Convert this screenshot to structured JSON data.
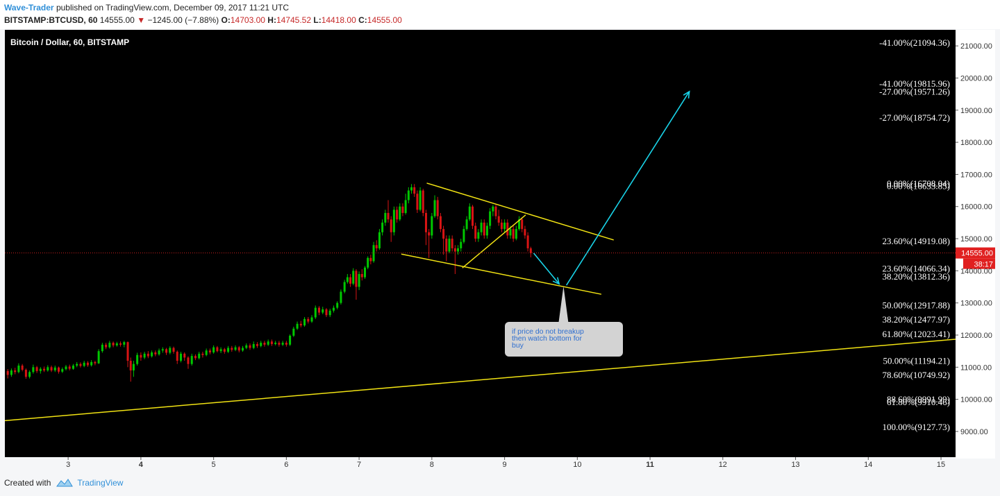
{
  "header": {
    "author": "Wave-Trader",
    "published_text": "published on TradingView.com, December 09, 2017 11:21 UTC",
    "symbol": "BITSTAMP:BTCUSD, 60",
    "last": "14555.00",
    "change_arrow": "▼",
    "change": "−1245.00 (−7.88%)",
    "o_label": "O:",
    "o_value": "14703.00",
    "h_label": "H:",
    "h_value": "14745.52",
    "l_label": "L:",
    "l_value": "14418.00",
    "c_label": "C:",
    "c_value": "14555.00"
  },
  "footer": {
    "created_with": "Created with",
    "brand": "TradingView"
  },
  "colors": {
    "background": "#000000",
    "up": "#00c800",
    "down": "#d81414",
    "trend": "#f2e313",
    "arrow": "#19d3e8",
    "axis_bg": "#ffffff",
    "price_line": "#cc2020",
    "price_tag": "#e02020"
  },
  "chart_data": {
    "type": "candlestick",
    "title": "Bitcoin / Dollar, 60, BITSTAMP",
    "ylim": [
      8200,
      21500
    ],
    "xlim": [
      2.13,
      15.2
    ],
    "x_ticks": [
      "3",
      "4",
      "5",
      "6",
      "7",
      "8",
      "9",
      "10",
      "11",
      "12",
      "13",
      "14",
      "15"
    ],
    "y_ticks": [
      "9000.00",
      "10000.00",
      "11000.00",
      "12000.00",
      "13000.00",
      "14000.00",
      "15000.00",
      "16000.00",
      "17000.00",
      "18000.00",
      "19000.00",
      "20000.00",
      "21000.00"
    ],
    "current_price": "14555.00",
    "countdown": "38:17",
    "candles": [
      [
        2.17,
        10880,
        10760,
        10940,
        10650
      ],
      [
        2.22,
        10760,
        10900,
        10960,
        10700
      ],
      [
        2.27,
        10900,
        10850,
        10980,
        10780
      ],
      [
        2.32,
        10850,
        11050,
        11120,
        10810
      ],
      [
        2.37,
        11050,
        10920,
        11100,
        10870
      ],
      [
        2.42,
        10920,
        10700,
        10960,
        10640
      ],
      [
        2.47,
        10700,
        10850,
        10900,
        10650
      ],
      [
        2.52,
        10850,
        11000,
        11080,
        10800
      ],
      [
        2.57,
        11000,
        10880,
        11040,
        10820
      ],
      [
        2.62,
        10880,
        10950,
        11000,
        10800
      ],
      [
        2.67,
        10950,
        10900,
        11020,
        10850
      ],
      [
        2.72,
        10900,
        11000,
        11060,
        10860
      ],
      [
        2.77,
        11000,
        10900,
        11050,
        10850
      ],
      [
        2.82,
        10900,
        10990,
        11050,
        10850
      ],
      [
        2.87,
        10990,
        10860,
        11020,
        10800
      ],
      [
        2.92,
        10860,
        10940,
        10990,
        10820
      ],
      [
        2.97,
        10940,
        11020,
        11070,
        10900
      ],
      [
        3.02,
        11020,
        10950,
        11080,
        10900
      ],
      [
        3.07,
        10950,
        11050,
        11100,
        10920
      ],
      [
        3.12,
        11050,
        11100,
        11160,
        11000
      ],
      [
        3.17,
        11100,
        11040,
        11150,
        10990
      ],
      [
        3.22,
        11040,
        11140,
        11200,
        11000
      ],
      [
        3.27,
        11140,
        11060,
        11190,
        11010
      ],
      [
        3.32,
        11060,
        11160,
        11220,
        11020
      ],
      [
        3.37,
        11160,
        11120,
        11200,
        11060
      ],
      [
        3.42,
        11120,
        11500,
        11560,
        11100
      ],
      [
        3.47,
        11500,
        11700,
        11760,
        11450
      ],
      [
        3.52,
        11700,
        11620,
        11760,
        11560
      ],
      [
        3.57,
        11620,
        11760,
        11820,
        11580
      ],
      [
        3.62,
        11760,
        11680,
        11800,
        11620
      ],
      [
        3.67,
        11680,
        11740,
        11790,
        11640
      ],
      [
        3.72,
        11740,
        11700,
        11800,
        11640
      ],
      [
        3.77,
        11700,
        11780,
        11820,
        11620
      ],
      [
        3.82,
        11780,
        11200,
        11800,
        11000
      ],
      [
        3.86,
        11200,
        10900,
        11300,
        10550
      ],
      [
        3.9,
        10900,
        11100,
        11200,
        10700
      ],
      [
        3.95,
        11100,
        11380,
        11450,
        11050
      ],
      [
        4.0,
        11380,
        11300,
        11460,
        11200
      ],
      [
        4.05,
        11300,
        11420,
        11480,
        11250
      ],
      [
        4.1,
        11420,
        11340,
        11500,
        11280
      ],
      [
        4.15,
        11340,
        11460,
        11520,
        11300
      ],
      [
        4.2,
        11460,
        11400,
        11520,
        11340
      ],
      [
        4.25,
        11400,
        11520,
        11580,
        11360
      ],
      [
        4.3,
        11520,
        11560,
        11620,
        11450
      ],
      [
        4.35,
        11560,
        11450,
        11600,
        11380
      ],
      [
        4.4,
        11450,
        11600,
        11650,
        11400
      ],
      [
        4.45,
        11600,
        11480,
        11640,
        11420
      ],
      [
        4.5,
        11480,
        11200,
        11520,
        11100
      ],
      [
        4.55,
        11200,
        11420,
        11480,
        11150
      ],
      [
        4.6,
        11420,
        11300,
        11460,
        11200
      ],
      [
        4.65,
        11300,
        11100,
        11340,
        10950
      ],
      [
        4.7,
        11100,
        11350,
        11420,
        11050
      ],
      [
        4.75,
        11350,
        11280,
        11400,
        11220
      ],
      [
        4.8,
        11280,
        11420,
        11480,
        11240
      ],
      [
        4.85,
        11420,
        11380,
        11480,
        11300
      ],
      [
        4.9,
        11380,
        11520,
        11580,
        11340
      ],
      [
        4.95,
        11520,
        11460,
        11580,
        11400
      ],
      [
        5.0,
        11460,
        11620,
        11680,
        11420
      ],
      [
        5.05,
        11620,
        11500,
        11660,
        11460
      ],
      [
        5.1,
        11500,
        11560,
        11620,
        11440
      ],
      [
        5.15,
        11560,
        11480,
        11600,
        11420
      ],
      [
        5.2,
        11480,
        11600,
        11660,
        11440
      ],
      [
        5.25,
        11600,
        11540,
        11660,
        11480
      ],
      [
        5.3,
        11540,
        11620,
        11680,
        11500
      ],
      [
        5.35,
        11620,
        11520,
        11660,
        11460
      ],
      [
        5.4,
        11520,
        11600,
        11660,
        11480
      ],
      [
        5.45,
        11600,
        11680,
        11740,
        11560
      ],
      [
        5.5,
        11680,
        11600,
        11740,
        11540
      ],
      [
        5.55,
        11600,
        11720,
        11800,
        11560
      ],
      [
        5.6,
        11720,
        11660,
        11780,
        11600
      ],
      [
        5.65,
        11660,
        11760,
        11820,
        11620
      ],
      [
        5.7,
        11760,
        11700,
        11820,
        11640
      ],
      [
        5.75,
        11700,
        11800,
        11860,
        11660
      ],
      [
        5.8,
        11800,
        11720,
        11860,
        11660
      ],
      [
        5.85,
        11720,
        11760,
        11820,
        11680
      ],
      [
        5.9,
        11760,
        11700,
        11820,
        11640
      ],
      [
        5.95,
        11700,
        11760,
        11820,
        11660
      ],
      [
        6.0,
        11760,
        11700,
        11820,
        11640
      ],
      [
        6.05,
        11700,
        11980,
        12020,
        11660
      ],
      [
        6.1,
        11980,
        12200,
        12260,
        11940
      ],
      [
        6.15,
        12200,
        12350,
        12420,
        12160
      ],
      [
        6.2,
        12350,
        12300,
        12440,
        12240
      ],
      [
        6.25,
        12300,
        12500,
        12560,
        12260
      ],
      [
        6.3,
        12500,
        12420,
        12560,
        12360
      ],
      [
        6.35,
        12420,
        12550,
        12620,
        12380
      ],
      [
        6.4,
        12550,
        12850,
        12920,
        12500
      ],
      [
        6.45,
        12850,
        12700,
        12900,
        12620
      ],
      [
        6.5,
        12700,
        12800,
        12880,
        12650
      ],
      [
        6.55,
        12800,
        12620,
        12840,
        12560
      ],
      [
        6.6,
        12620,
        12760,
        12820,
        12560
      ],
      [
        6.65,
        12760,
        12850,
        12920,
        12700
      ],
      [
        6.7,
        12850,
        13000,
        13050,
        12800
      ],
      [
        6.75,
        13000,
        13350,
        13420,
        12950
      ],
      [
        6.8,
        13350,
        13650,
        13720,
        13300
      ],
      [
        6.84,
        13650,
        13800,
        13900,
        13600
      ],
      [
        6.88,
        13800,
        13600,
        13900,
        13500
      ],
      [
        6.92,
        13600,
        14000,
        14080,
        13550
      ],
      [
        6.96,
        14000,
        13500,
        14050,
        13100
      ],
      [
        7.0,
        13500,
        13900,
        13980,
        13400
      ],
      [
        7.04,
        13900,
        13800,
        14050,
        13700
      ],
      [
        7.08,
        13800,
        14100,
        14150,
        13750
      ],
      [
        7.12,
        14100,
        14400,
        14450,
        14050
      ],
      [
        7.16,
        14400,
        14300,
        14500,
        14200
      ],
      [
        7.2,
        14300,
        14800,
        14900,
        14250
      ],
      [
        7.24,
        14800,
        14700,
        14950,
        14600
      ],
      [
        7.28,
        14700,
        15200,
        15300,
        14650
      ],
      [
        7.32,
        15200,
        15500,
        15600,
        15100
      ],
      [
        7.36,
        15500,
        15800,
        15900,
        15400
      ],
      [
        7.4,
        15800,
        15600,
        16200,
        15500
      ],
      [
        7.44,
        15600,
        15200,
        15700,
        14900
      ],
      [
        7.48,
        15200,
        15900,
        16000,
        15100
      ],
      [
        7.52,
        15900,
        15600,
        16000,
        15500
      ],
      [
        7.56,
        15600,
        16000,
        16100,
        15550
      ],
      [
        7.6,
        16000,
        15800,
        16100,
        15700
      ],
      [
        7.64,
        15800,
        16200,
        16400,
        15750
      ],
      [
        7.68,
        16200,
        16500,
        16600,
        16100
      ],
      [
        7.72,
        16500,
        16600,
        16700,
        16400
      ],
      [
        7.76,
        16600,
        16400,
        16700,
        16300
      ],
      [
        7.8,
        16400,
        15900,
        16500,
        15800
      ],
      [
        7.84,
        15900,
        16500,
        16600,
        15850
      ],
      [
        7.88,
        16500,
        15800,
        16550,
        15700
      ],
      [
        7.92,
        15800,
        15200,
        15900,
        14800
      ],
      [
        7.96,
        15200,
        15100,
        15300,
        14400
      ],
      [
        8.0,
        15100,
        15700,
        15800,
        15000
      ],
      [
        8.04,
        15700,
        16200,
        16350,
        15650
      ],
      [
        8.08,
        16200,
        15700,
        16300,
        15600
      ],
      [
        8.12,
        15700,
        15300,
        15800,
        15200
      ],
      [
        8.16,
        15300,
        15000,
        15400,
        14500
      ],
      [
        8.2,
        15000,
        14600,
        15100,
        14300
      ],
      [
        8.24,
        14600,
        15000,
        15100,
        14550
      ],
      [
        8.28,
        15000,
        14700,
        15100,
        14600
      ],
      [
        8.32,
        14700,
        14600,
        14800,
        13900
      ],
      [
        8.36,
        14600,
        14700,
        14800,
        14500
      ],
      [
        8.4,
        14700,
        14900,
        15000,
        14600
      ],
      [
        8.44,
        14900,
        15300,
        15400,
        14850
      ],
      [
        8.48,
        15300,
        15600,
        15700,
        15250
      ],
      [
        8.52,
        15600,
        16000,
        16100,
        15550
      ],
      [
        8.56,
        16000,
        15400,
        16050,
        15300
      ],
      [
        8.6,
        15400,
        15000,
        15500,
        14900
      ],
      [
        8.64,
        15000,
        15200,
        15300,
        14900
      ],
      [
        8.68,
        15200,
        15500,
        15600,
        15100
      ],
      [
        8.72,
        15500,
        15100,
        15600,
        15000
      ],
      [
        8.76,
        15100,
        15400,
        15500,
        15000
      ],
      [
        8.8,
        15400,
        15850,
        15950,
        15300
      ],
      [
        8.84,
        15850,
        16000,
        16050,
        15700
      ],
      [
        8.88,
        16000,
        15700,
        16050,
        15600
      ],
      [
        8.92,
        15700,
        15500,
        15900,
        15400
      ],
      [
        8.96,
        15500,
        15300,
        15600,
        15200
      ],
      [
        9.0,
        15300,
        15500,
        15600,
        15200
      ],
      [
        9.04,
        15500,
        15100,
        15600,
        15000
      ],
      [
        9.08,
        15100,
        15300,
        15400,
        15000
      ],
      [
        9.12,
        15300,
        15000,
        15400,
        14900
      ],
      [
        9.16,
        15000,
        15300,
        15400,
        14950
      ],
      [
        9.2,
        15300,
        15600,
        15700,
        15250
      ],
      [
        9.24,
        15600,
        15300,
        15650,
        15200
      ],
      [
        9.28,
        15300,
        15100,
        15400,
        15000
      ],
      [
        9.32,
        15100,
        14700,
        15200,
        14600
      ],
      [
        9.36,
        14700,
        14555,
        14750,
        14418
      ]
    ],
    "trendlines": [
      {
        "points": [
          [
            2.13,
            9337
          ],
          [
            15.2,
            11870
          ]
        ],
        "color": "trend"
      },
      {
        "points": [
          [
            7.93,
            16730
          ],
          [
            10.5,
            14960
          ]
        ],
        "color": "trend"
      },
      {
        "points": [
          [
            7.58,
            14520
          ],
          [
            10.33,
            13270
          ]
        ],
        "color": "trend"
      },
      {
        "points": [
          [
            8.42,
            14090
          ],
          [
            9.29,
            15740
          ]
        ],
        "color": "trend"
      }
    ],
    "arrows": [
      {
        "points": [
          [
            9.4,
            14550
          ],
          [
            9.75,
            13590
          ]
        ],
        "color": "arrow"
      },
      {
        "points": [
          [
            9.85,
            13550
          ],
          [
            11.54,
            19580
          ]
        ],
        "color": "arrow"
      }
    ],
    "fib_labels": [
      {
        "text": "-41.00%(21094.36)",
        "y": 21094.36
      },
      {
        "text": "-41.00%(19815.96)",
        "y": 19815.96
      },
      {
        "text": "-27.00%(19571.26)",
        "y": 19571.26
      },
      {
        "text": "-27.00%(18754.72)",
        "y": 18754.72
      },
      {
        "text": "0.00%(16708.04)",
        "y": 16708.04
      },
      {
        "text": "0.00%(16633.85)",
        "y": 16633.85
      },
      {
        "text": "23.60%(14919.08)",
        "y": 14919.08
      },
      {
        "text": "23.60%(14066.34)",
        "y": 14066.34
      },
      {
        "text": "38.20%(13812.36)",
        "y": 13812.36
      },
      {
        "text": "50.00%(12917.88)",
        "y": 12917.88
      },
      {
        "text": "38.20%(12477.97)",
        "y": 12477.97
      },
      {
        "text": "61.80%(12023.41)",
        "y": 12023.41
      },
      {
        "text": "50.00%(11194.21)",
        "y": 11194.21
      },
      {
        "text": "78.60%(10749.92)",
        "y": 10749.92
      },
      {
        "text": "88.60%(9991.99)",
        "y": 9991.99
      },
      {
        "text": "61.80%(9910.46)",
        "y": 9910.46
      },
      {
        "text": "100.00%(9127.73)",
        "y": 9127.73
      }
    ],
    "annotation": {
      "text": [
        "if price do not breakup",
        "then watch bottom for",
        "buy"
      ],
      "tip": [
        9.81,
        13520
      ]
    }
  }
}
